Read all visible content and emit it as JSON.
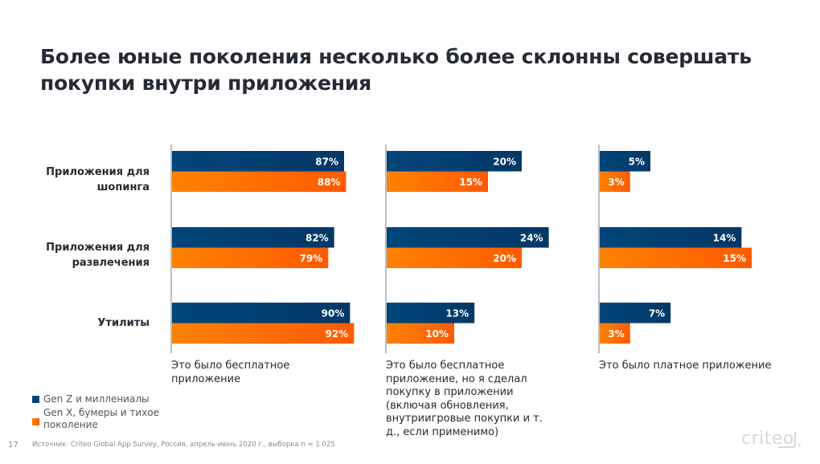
{
  "page": {
    "title": "Более юные поколения несколько более склонны совершать покупки внутри приложения",
    "page_number": "17",
    "source": "Источник: Criteo Global App Survey, Россия, апрель-июнь 2020 г., выборка n = 1 025",
    "logo": "criteo"
  },
  "colors": {
    "genz": "#00457a",
    "genz_dark": "#033866",
    "genx": "#ff8200",
    "genx_dark": "#ff5a00",
    "axis": "#b9bec8"
  },
  "chart_data": {
    "type": "bar",
    "orientation": "horizontal",
    "title": "Более юные поколения несколько более склонны совершать покупки внутри приложения",
    "categories": [
      "Приложения для шопинга",
      "Приложения для развлечения",
      "Утилиты"
    ],
    "category_lines": [
      [
        "Приложения для",
        "шопинга"
      ],
      [
        "Приложения для",
        "развлечения"
      ],
      [
        "Утилиты"
      ]
    ],
    "legend": {
      "placement": "bottom-left",
      "entries": [
        "Gen Z и миллениалы",
        "Gen X, бумеры и тихое поколение"
      ],
      "entry_lines": [
        [
          "Gen Z и миллениалы"
        ],
        [
          "Gen X, бумеры и тихое",
          "поколение"
        ]
      ]
    },
    "unit": "%",
    "panels": [
      {
        "caption": "Это было бесплатное приложение",
        "caption_lines": [
          "Это было бесплатное",
          "приложение"
        ],
        "xlim": [
          0,
          100
        ],
        "series": [
          {
            "name": "Gen Z и миллениалы",
            "values": [
              87,
              82,
              90
            ]
          },
          {
            "name": "Gen X, бумеры и тихое поколение",
            "values": [
              88,
              79,
              92
            ]
          }
        ]
      },
      {
        "caption": "Это было бесплатное приложение, но я сделал покупку в приложении (включая обновления, внутриигровые покупки и т. д., если применимо)",
        "caption_lines": [
          "Это было бесплатное",
          "приложение, но я сделал",
          "покупку в приложении",
          "(включая обновления,",
          "внутриигровые покупки и т.",
          "д., если применимо)"
        ],
        "xlim": [
          0,
          30
        ],
        "series": [
          {
            "name": "Gen Z и миллениалы",
            "values": [
              20,
              24,
              13
            ]
          },
          {
            "name": "Gen X, бумеры и тихое поколение",
            "values": [
              15,
              20,
              10
            ]
          }
        ]
      },
      {
        "caption": "Это было платное приложение",
        "caption_lines": [
          "Это было платное приложение"
        ],
        "xlim": [
          0,
          20
        ],
        "series": [
          {
            "name": "Gen Z и миллениалы",
            "values": [
              5,
              14,
              7
            ]
          },
          {
            "name": "Gen X, бумеры и тихое поколение",
            "values": [
              3,
              15,
              3
            ]
          }
        ]
      }
    ]
  }
}
